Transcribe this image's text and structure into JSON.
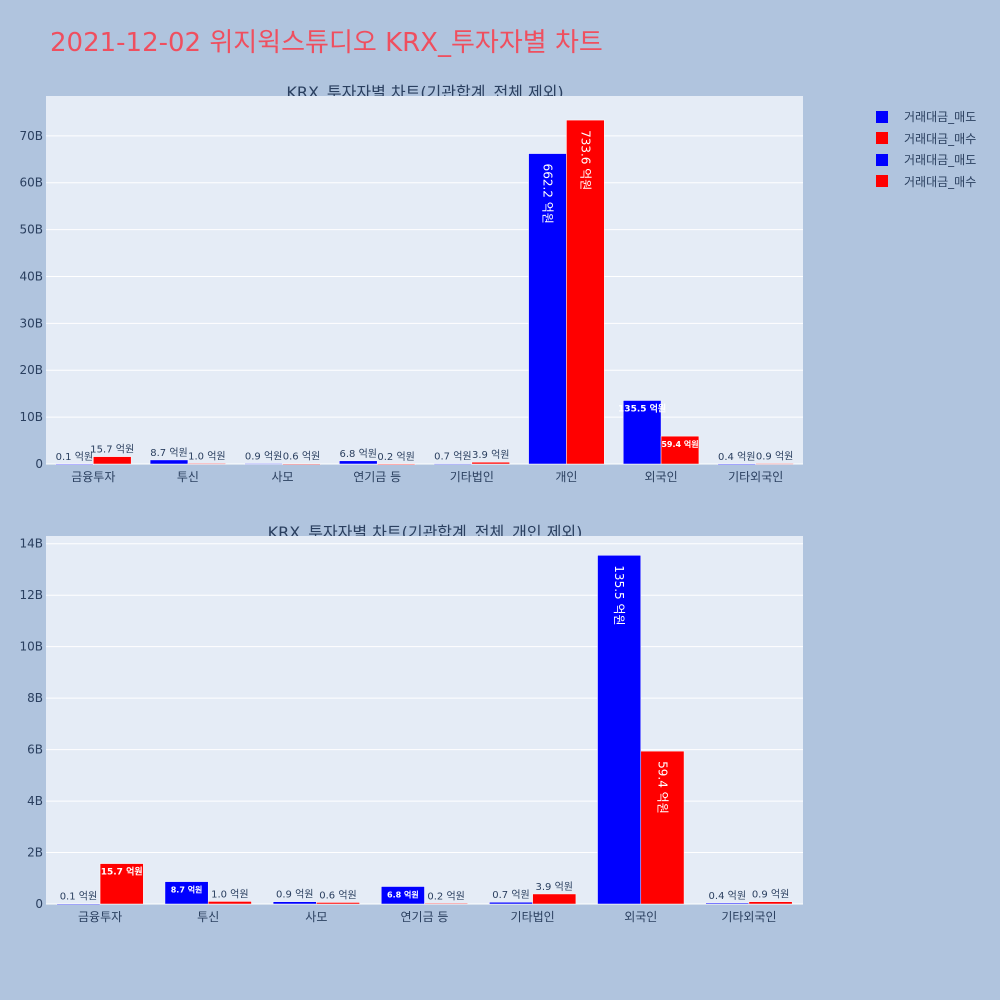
{
  "page_title": "2021-12-02 위지윅스튜디오 KRX_투자자별 차트",
  "colors": {
    "sell": "#0000ff",
    "buy": "#ff0000",
    "plot_bg": "#e5ecf6",
    "paper_bg": "#b0c4de",
    "title": "#ef4f5f"
  },
  "legend": [
    {
      "label": "거래대금_매도",
      "color": "#0000ff"
    },
    {
      "label": "거래대금_매수",
      "color": "#ff0000"
    },
    {
      "label": "거래대금_매도",
      "color": "#0000ff"
    },
    {
      "label": "거래대금_매수",
      "color": "#ff0000"
    }
  ],
  "chart_data": [
    {
      "type": "bar",
      "title": "KRX_투자자별 차트(기관합계_전체 제외)",
      "categories": [
        "금융투자",
        "투신",
        "사모",
        "연기금 등",
        "기타법인",
        "개인",
        "외국인",
        "기타외국인"
      ],
      "series": [
        {
          "name": "거래대금_매도",
          "values": [
            0.01,
            0.87,
            0.09,
            0.68,
            0.07,
            66.22,
            13.55,
            0.04
          ],
          "labels": [
            "0.1 억원",
            "8.7 억원",
            "0.9 억원",
            "6.8 억원",
            "0.7 억원",
            "662.2 억원",
            "135.5 억원",
            "0.4 억원"
          ]
        },
        {
          "name": "거래대금_매수",
          "values": [
            1.57,
            0.1,
            0.06,
            0.02,
            0.39,
            73.36,
            5.94,
            0.09
          ],
          "labels": [
            "15.7 억원",
            "1.0 억원",
            "0.6 억원",
            "0.2 억원",
            "3.9 억원",
            "733.6 억원",
            "59.4 억원",
            "0.9 억원"
          ]
        }
      ],
      "yticks": [
        "0",
        "10B",
        "20B",
        "30B",
        "40B",
        "50B",
        "60B",
        "70B"
      ],
      "ylim": [
        0,
        78.5
      ],
      "ytick_values": [
        0,
        10,
        20,
        30,
        40,
        50,
        60,
        70
      ]
    },
    {
      "type": "bar",
      "title": "KRX_투자자별 차트(기관합계_전체_개인 제외)",
      "categories": [
        "금융투자",
        "투신",
        "사모",
        "연기금 등",
        "기타법인",
        "외국인",
        "기타외국인"
      ],
      "series": [
        {
          "name": "거래대금_매도",
          "values": [
            0.01,
            0.87,
            0.09,
            0.68,
            0.07,
            13.55,
            0.04
          ],
          "labels": [
            "0.1 억원",
            "8.7 억원",
            "0.9 억원",
            "6.8 억원",
            "0.7 억원",
            "135.5 억원",
            "0.4 억원"
          ]
        },
        {
          "name": "거래대금_매수",
          "values": [
            1.57,
            0.1,
            0.06,
            0.02,
            0.39,
            5.94,
            0.09
          ],
          "labels": [
            "15.7 억원",
            "1.0 억원",
            "0.6 억원",
            "0.2 억원",
            "3.9 억원",
            "59.4 억원",
            "0.9 억원"
          ]
        }
      ],
      "yticks": [
        "0",
        "2B",
        "4B",
        "6B",
        "8B",
        "10B",
        "12B",
        "14B"
      ],
      "ylim": [
        0,
        14.3
      ],
      "ytick_values": [
        0,
        2,
        4,
        6,
        8,
        10,
        12,
        14
      ]
    }
  ]
}
